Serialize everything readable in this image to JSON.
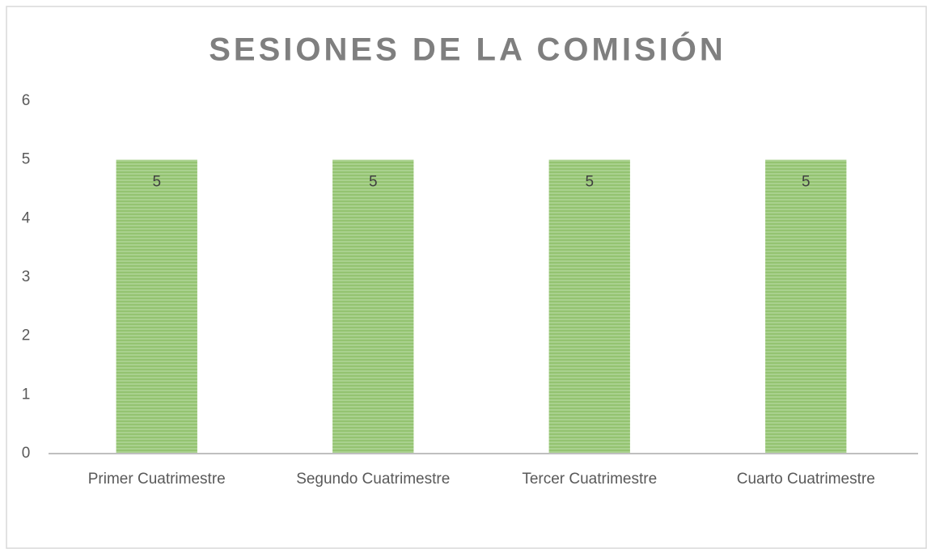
{
  "chart_data": {
    "type": "bar",
    "title": "SESIONES DE LA COMISIÓN",
    "categories": [
      "Primer Cuatrimestre",
      "Segundo Cuatrimestre",
      "Tercer Cuatrimestre",
      "Cuarto Cuatrimestre"
    ],
    "values": [
      5,
      5,
      5,
      5
    ],
    "color": "#a9d18e",
    "ylim": [
      0,
      6
    ],
    "yticks": [
      0,
      1,
      2,
      3,
      4,
      5,
      6
    ],
    "grid": false
  }
}
